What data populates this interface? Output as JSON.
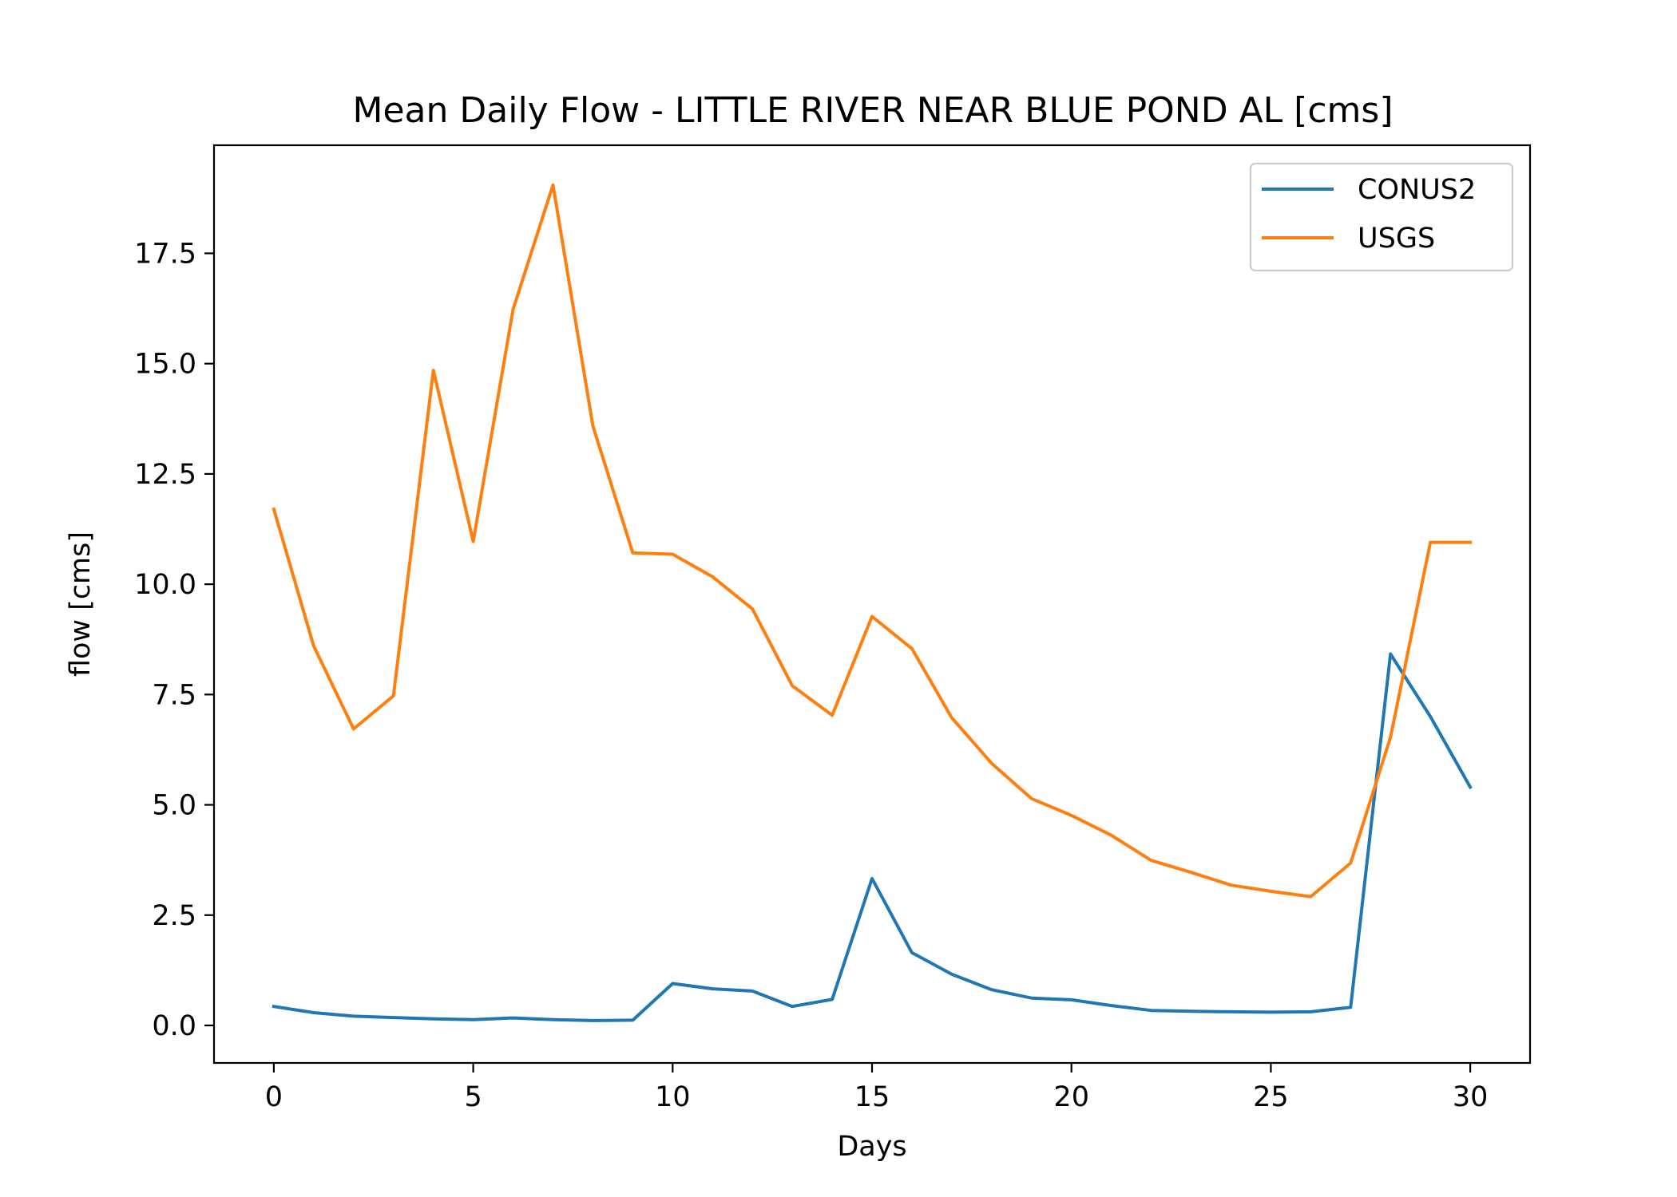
{
  "chart_data": {
    "type": "line",
    "title": "Mean Daily Flow - LITTLE RIVER NEAR BLUE POND AL [cms]",
    "xlabel": "Days",
    "ylabel": "flow [cms]",
    "xlim": [
      -1.5,
      31.5
    ],
    "ylim": [
      -0.85,
      19.95
    ],
    "x_ticks": [
      0,
      5,
      10,
      15,
      20,
      25,
      30
    ],
    "x_tick_labels": [
      "0",
      "5",
      "10",
      "15",
      "20",
      "25",
      "30"
    ],
    "y_ticks": [
      0,
      2.5,
      5,
      7.5,
      10,
      12.5,
      15,
      17.5
    ],
    "y_tick_labels": [
      "0.0",
      "2.5",
      "5.0",
      "7.5",
      "10.0",
      "12.5",
      "15.0",
      "17.5"
    ],
    "grid": false,
    "legend_position": "top-right",
    "x": [
      0,
      1,
      2,
      3,
      4,
      5,
      6,
      7,
      8,
      9,
      10,
      11,
      12,
      13,
      14,
      15,
      16,
      17,
      18,
      19,
      20,
      21,
      22,
      23,
      24,
      25,
      26,
      27,
      28,
      29,
      30
    ],
    "series": [
      {
        "name": "CONUS2",
        "color": "#1f77b4",
        "values": [
          0.43,
          0.29,
          0.21,
          0.18,
          0.15,
          0.13,
          0.17,
          0.13,
          0.11,
          0.12,
          0.95,
          0.83,
          0.78,
          0.43,
          0.59,
          3.33,
          1.65,
          1.16,
          0.81,
          0.62,
          0.58,
          0.45,
          0.34,
          0.32,
          0.31,
          0.3,
          0.31,
          0.41,
          8.42,
          7.0,
          5.4
        ]
      },
      {
        "name": "USGS",
        "color": "#ff7f0e",
        "values": [
          11.7,
          8.6,
          6.72,
          7.47,
          14.85,
          10.97,
          16.23,
          19.05,
          13.59,
          10.71,
          10.68,
          10.17,
          9.44,
          7.7,
          7.03,
          9.27,
          8.54,
          6.97,
          5.94,
          5.14,
          4.76,
          4.31,
          3.74,
          3.47,
          3.18,
          3.04,
          2.92,
          3.68,
          6.53,
          10.95,
          10.95
        ]
      }
    ]
  }
}
